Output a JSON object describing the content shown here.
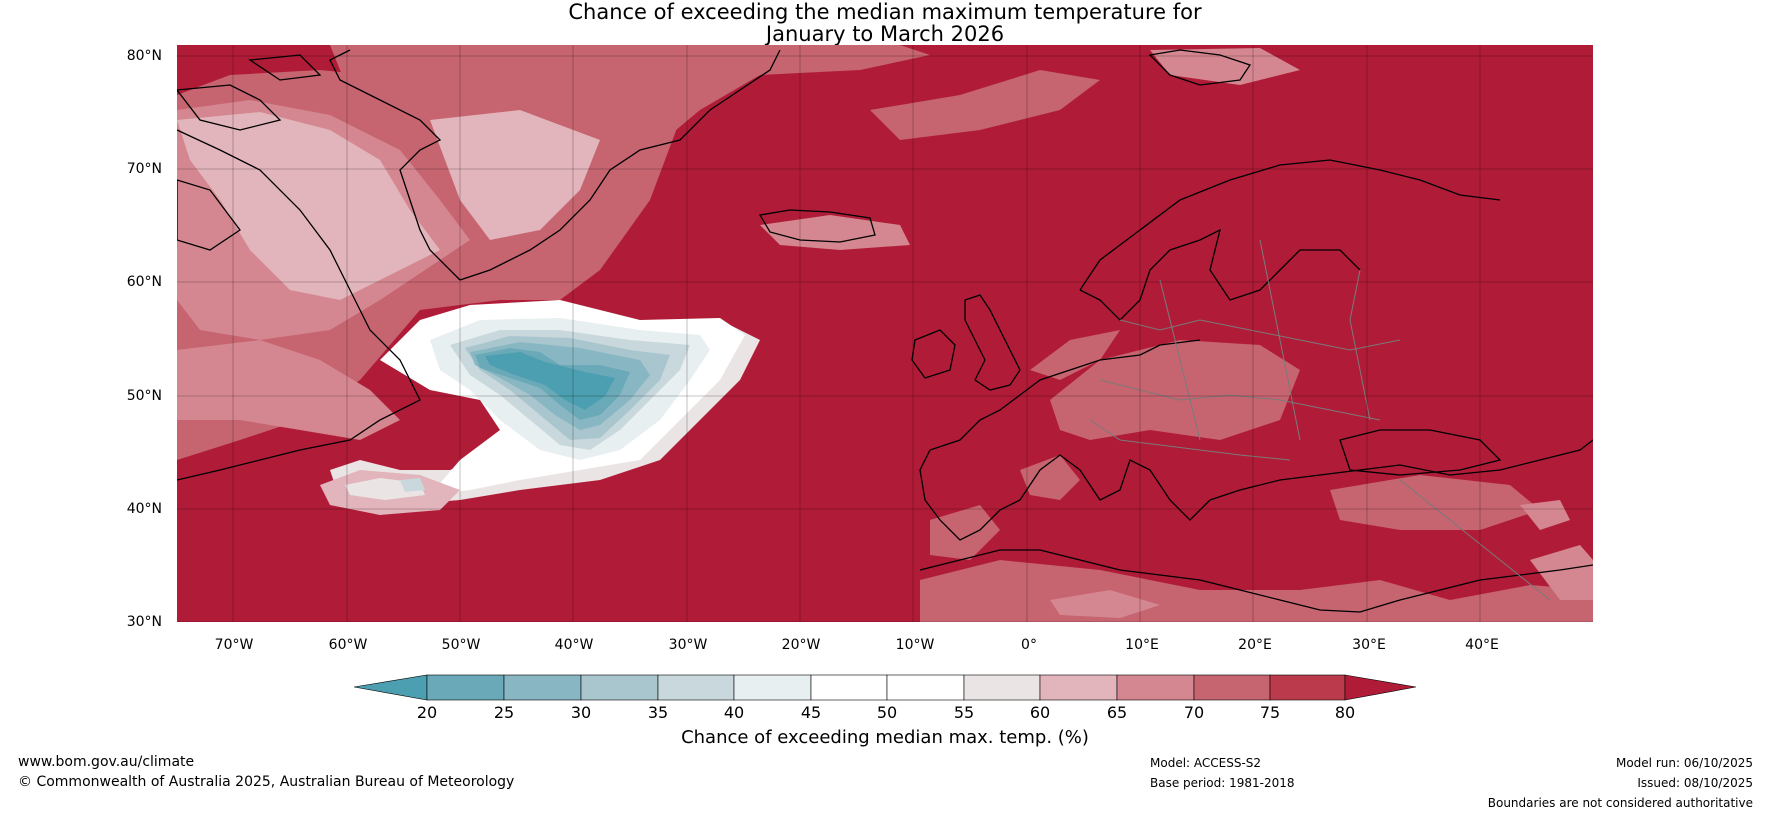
{
  "title": {
    "line1": "Chance of exceeding the median maximum temperature for",
    "line2": "January to March 2026"
  },
  "map": {
    "longitude_labels": [
      "70°W",
      "60°W",
      "50°W",
      "40°W",
      "30°W",
      "20°W",
      "10°W",
      "0°",
      "10°E",
      "20°E",
      "30°E",
      "40°E"
    ],
    "latitude_labels": [
      "80°N",
      "70°N",
      "60°N",
      "50°N",
      "40°N",
      "30°N"
    ],
    "extent": {
      "lon_min": -75,
      "lon_max": 50,
      "lat_min": 30,
      "lat_max": 81
    }
  },
  "colorbar": {
    "label": "Chance of exceeding median max. temp. (%)",
    "ticks": [
      "20",
      "25",
      "30",
      "35",
      "40",
      "45",
      "50",
      "55",
      "60",
      "65",
      "70",
      "75",
      "80"
    ],
    "colors": [
      "#4b9fb0",
      "#6aa9b8",
      "#88b7c3",
      "#a9c6ce",
      "#c8d8dc",
      "#e8eff0",
      "#ffffff",
      "#ffffff",
      "#eae4e5",
      "#e1b5bb",
      "#d58791",
      "#c66470",
      "#bb3a4c",
      "#b01c37"
    ]
  },
  "footer": {
    "website": "www.bom.gov.au/climate",
    "copyright": "© Commonwealth of Australia 2025, Australian Bureau of Meteorology",
    "model": "Model: ACCESS-S2",
    "base_period": "Base period: 1981-2018",
    "model_run": "Model run: 06/10/2025",
    "issued": "Issued: 08/10/2025",
    "disclaimer": "Boundaries are not considered authoritative"
  }
}
